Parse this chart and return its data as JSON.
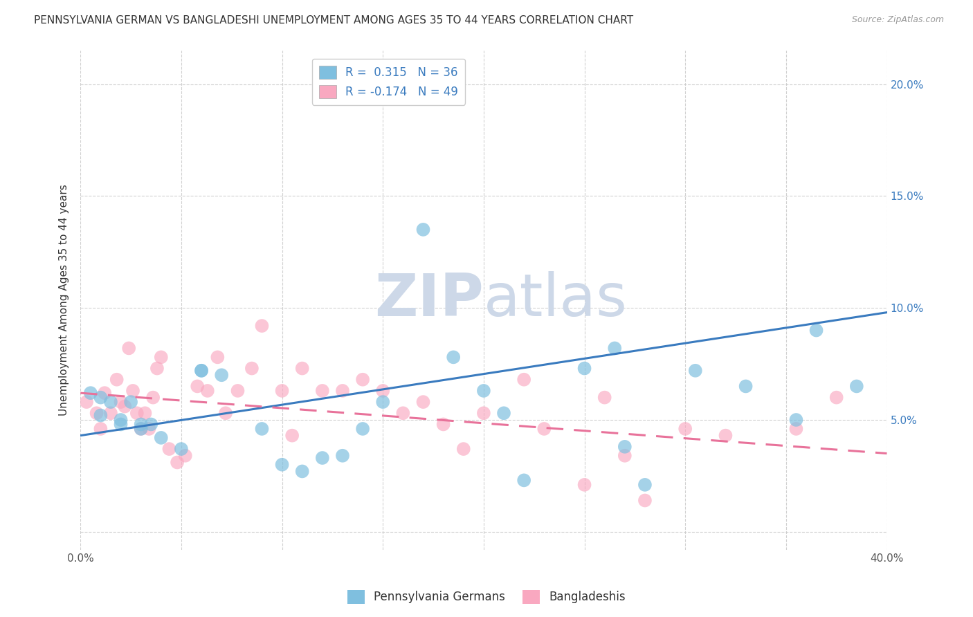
{
  "title": "PENNSYLVANIA GERMAN VS BANGLADESHI UNEMPLOYMENT AMONG AGES 35 TO 44 YEARS CORRELATION CHART",
  "source": "Source: ZipAtlas.com",
  "ylabel": "Unemployment Among Ages 35 to 44 years",
  "xlim": [
    0,
    0.4
  ],
  "ylim": [
    -0.008,
    0.215
  ],
  "xticks": [
    0.0,
    0.05,
    0.1,
    0.15,
    0.2,
    0.25,
    0.3,
    0.35,
    0.4
  ],
  "yticks": [
    0.0,
    0.05,
    0.1,
    0.15,
    0.2
  ],
  "blue_color": "#7fbfdf",
  "pink_color": "#f9a8c0",
  "blue_line_color": "#3a7bbf",
  "pink_line_color": "#e8729a",
  "legend_r_blue": "R =  0.315",
  "legend_n_blue": "N = 36",
  "legend_r_pink": "R = -0.174",
  "legend_n_pink": "N = 49",
  "watermark": "ZIPatlas",
  "watermark_color": "#cdd8e8",
  "blue_scatter_x": [
    0.005,
    0.01,
    0.01,
    0.015,
    0.02,
    0.02,
    0.025,
    0.03,
    0.03,
    0.035,
    0.04,
    0.05,
    0.06,
    0.06,
    0.07,
    0.09,
    0.1,
    0.11,
    0.12,
    0.13,
    0.14,
    0.15,
    0.17,
    0.185,
    0.2,
    0.21,
    0.22,
    0.25,
    0.265,
    0.27,
    0.28,
    0.305,
    0.33,
    0.355,
    0.365,
    0.385
  ],
  "blue_scatter_y": [
    0.062,
    0.06,
    0.052,
    0.058,
    0.05,
    0.048,
    0.058,
    0.048,
    0.046,
    0.048,
    0.042,
    0.037,
    0.072,
    0.072,
    0.07,
    0.046,
    0.03,
    0.027,
    0.033,
    0.034,
    0.046,
    0.058,
    0.135,
    0.078,
    0.063,
    0.053,
    0.023,
    0.073,
    0.082,
    0.038,
    0.021,
    0.072,
    0.065,
    0.05,
    0.09,
    0.065
  ],
  "pink_scatter_x": [
    0.003,
    0.008,
    0.01,
    0.012,
    0.015,
    0.018,
    0.02,
    0.022,
    0.024,
    0.026,
    0.028,
    0.03,
    0.032,
    0.034,
    0.036,
    0.038,
    0.04,
    0.044,
    0.048,
    0.052,
    0.058,
    0.063,
    0.068,
    0.072,
    0.078,
    0.085,
    0.09,
    0.1,
    0.105,
    0.11,
    0.12,
    0.13,
    0.14,
    0.15,
    0.16,
    0.17,
    0.18,
    0.19,
    0.2,
    0.22,
    0.23,
    0.25,
    0.26,
    0.27,
    0.28,
    0.3,
    0.32,
    0.355,
    0.375
  ],
  "pink_scatter_y": [
    0.058,
    0.053,
    0.046,
    0.062,
    0.053,
    0.068,
    0.058,
    0.056,
    0.082,
    0.063,
    0.053,
    0.046,
    0.053,
    0.046,
    0.06,
    0.073,
    0.078,
    0.037,
    0.031,
    0.034,
    0.065,
    0.063,
    0.078,
    0.053,
    0.063,
    0.073,
    0.092,
    0.063,
    0.043,
    0.073,
    0.063,
    0.063,
    0.068,
    0.063,
    0.053,
    0.058,
    0.048,
    0.037,
    0.053,
    0.068,
    0.046,
    0.021,
    0.06,
    0.034,
    0.014,
    0.046,
    0.043,
    0.046,
    0.06
  ],
  "blue_trend_y_start": 0.043,
  "blue_trend_y_end": 0.098,
  "pink_trend_y_start": 0.062,
  "pink_trend_y_end": 0.035,
  "legend_label_blue": "Pennsylvania Germans",
  "legend_label_pink": "Bangladeshis",
  "title_fontsize": 11,
  "axis_label_fontsize": 11,
  "tick_fontsize": 11,
  "legend_fontsize": 12
}
